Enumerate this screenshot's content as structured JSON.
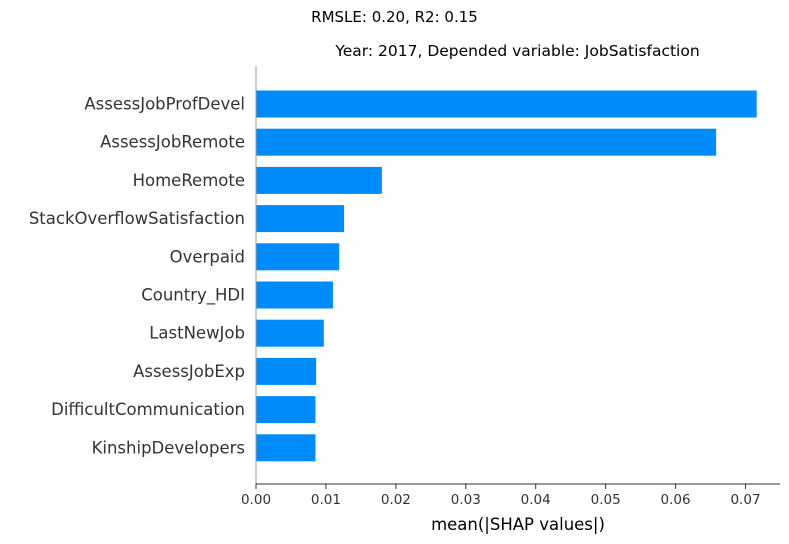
{
  "chart_data": {
    "type": "bar",
    "orientation": "horizontal",
    "suptitle": "RMSLE: 0.20, R2: 0.15",
    "title": "Year: 2017, Depended variable: JobSatisfaction",
    "xlabel": "mean(|SHAP values|)",
    "ylabel": "",
    "xlim": [
      0,
      0.075
    ],
    "xticks": [
      "0.00",
      "0.01",
      "0.02",
      "0.03",
      "0.04",
      "0.05",
      "0.06",
      "0.07"
    ],
    "categories": [
      "AssessJobProfDevel",
      "AssessJobRemote",
      "HomeRemote",
      "StackOverflowSatisfaction",
      "Overpaid",
      "Country_HDI",
      "LastNewJob",
      "AssessJobExp",
      "DifficultCommunication",
      "KinshipDevelopers"
    ],
    "values": [
      0.0716,
      0.0658,
      0.018,
      0.0126,
      0.0119,
      0.011,
      0.0097,
      0.0086,
      0.0085,
      0.0085
    ],
    "bar_color": "#008bfb",
    "grid": false,
    "legend": "none"
  }
}
